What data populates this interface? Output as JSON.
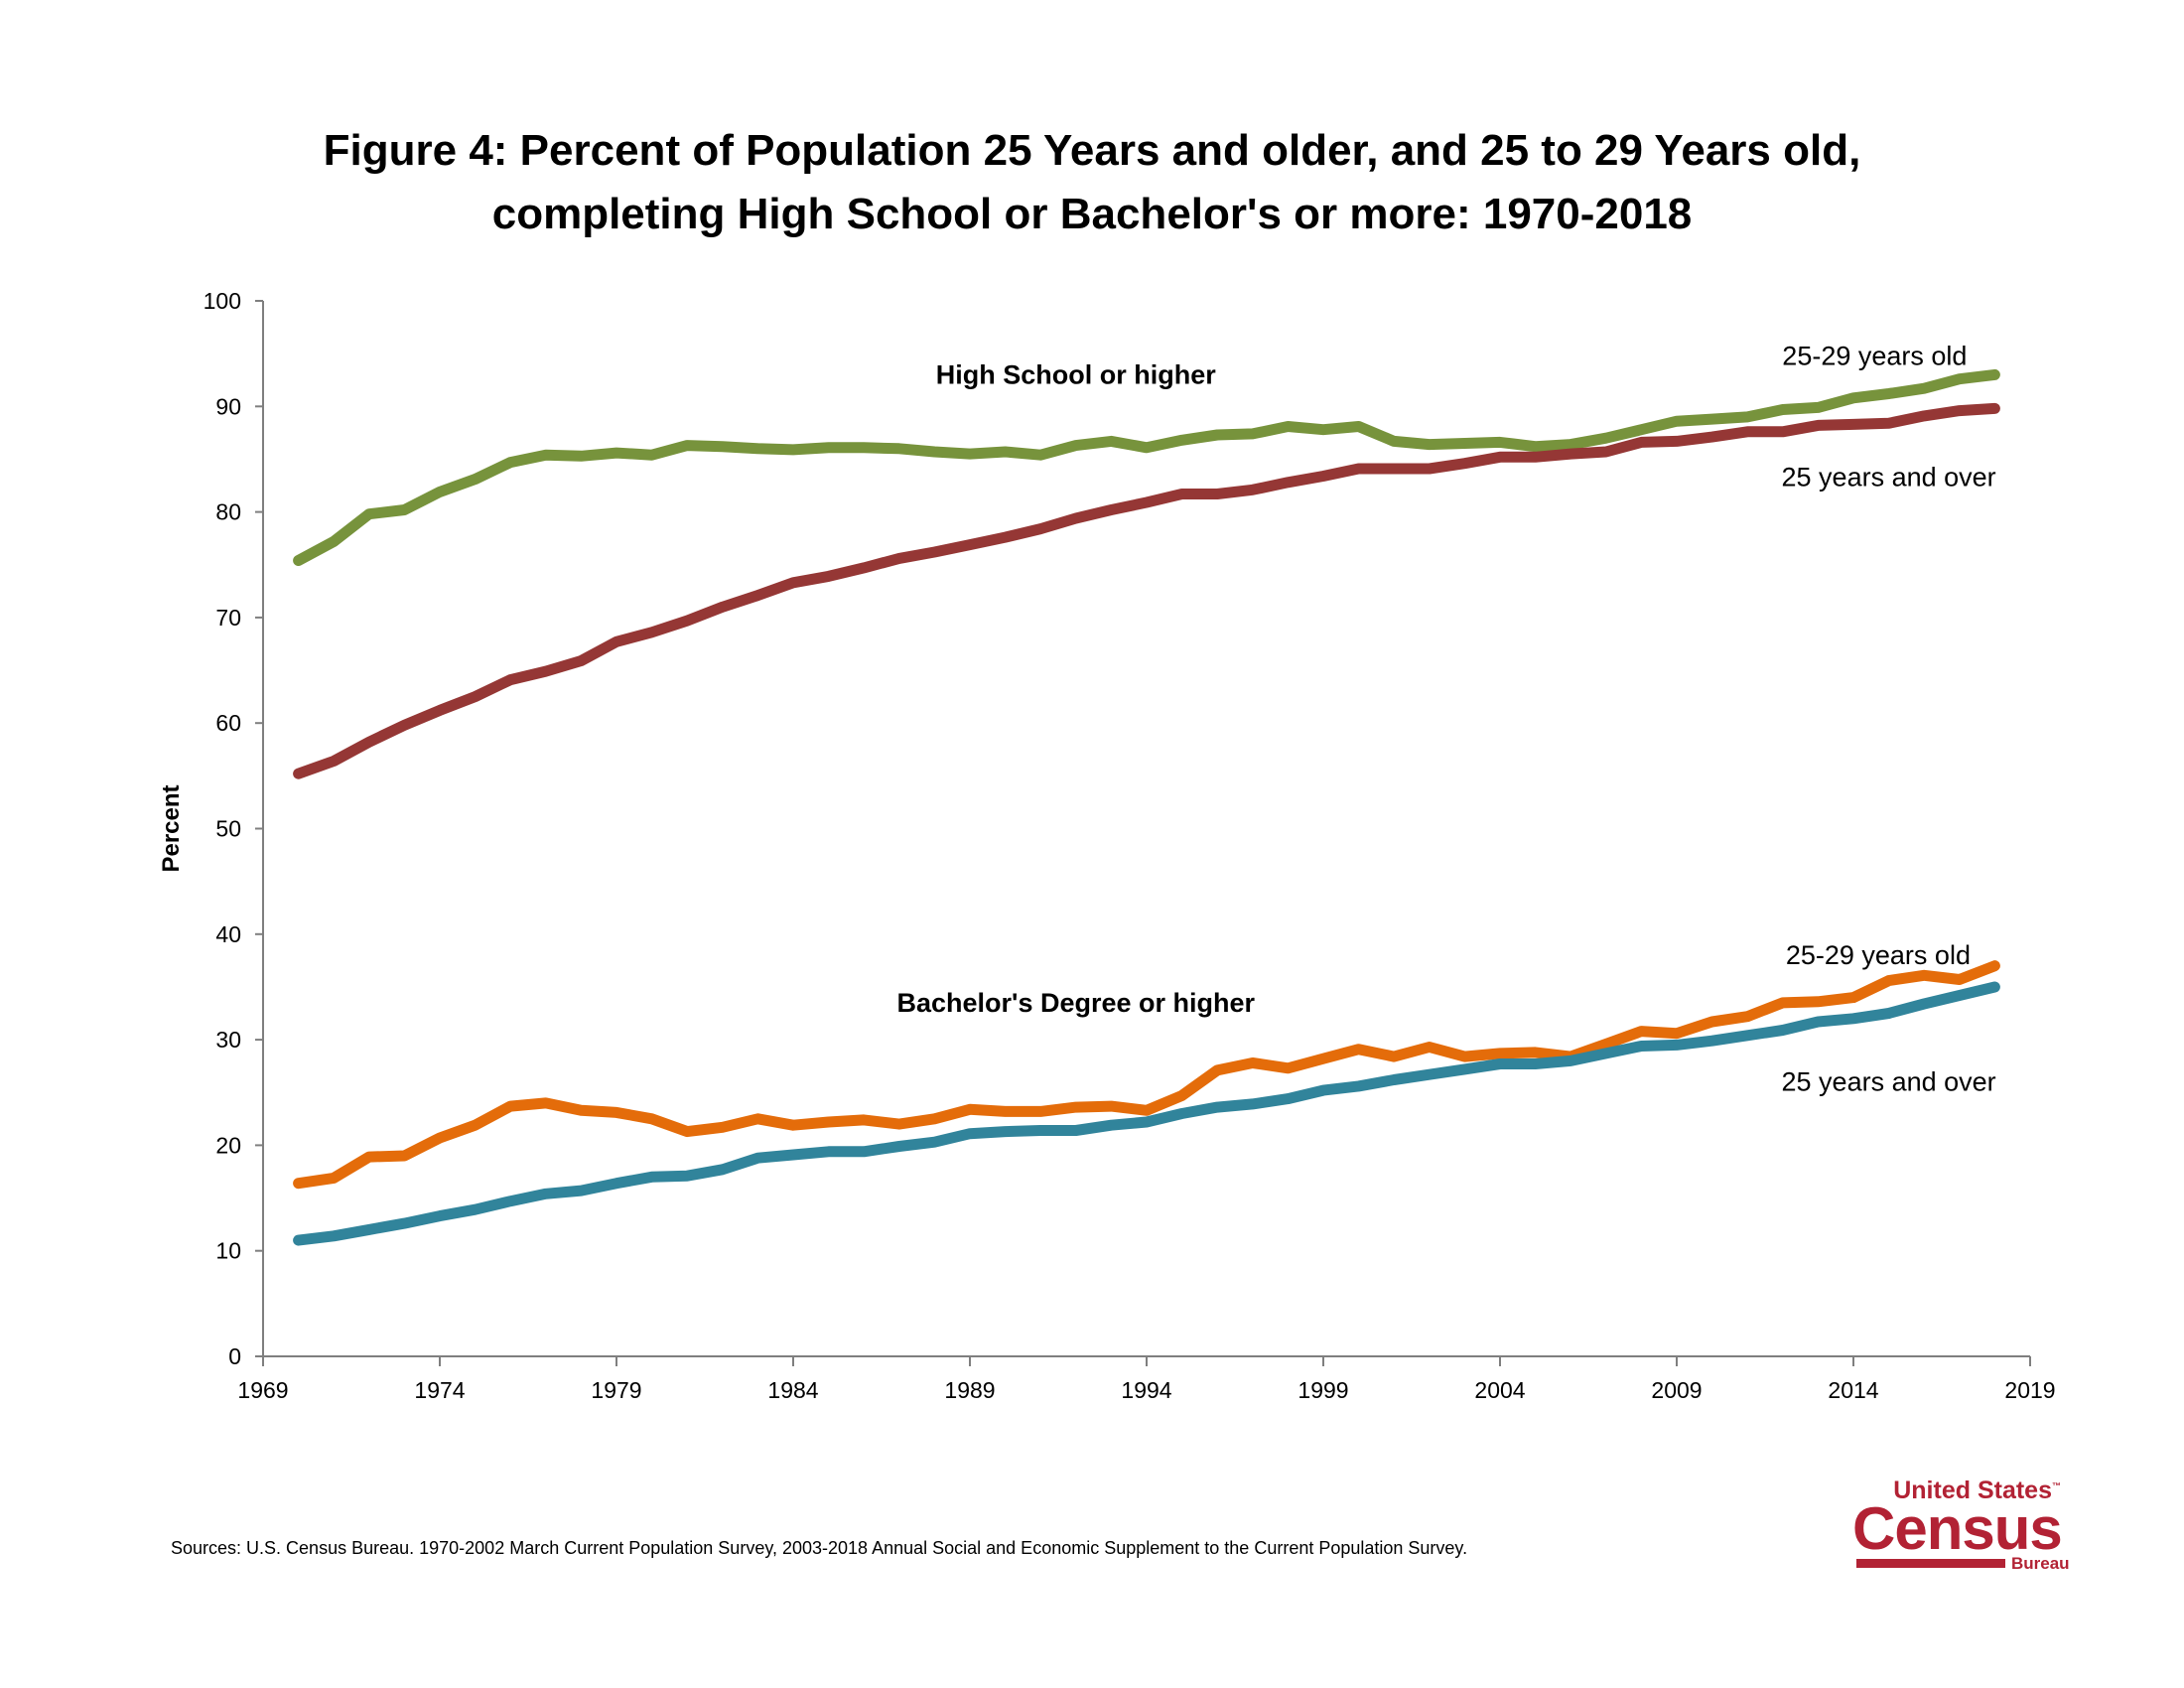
{
  "title": {
    "line1": "Figure 4: Percent of Population 25 Years and older, and 25 to 29 Years old,",
    "line2": "completing High School or Bachelor's or more: 1970-2018"
  },
  "sources": "Sources:  U.S. Census Bureau. 1970-2002 March Current Population Survey, 2003-2018 Annual Social and Economic Supplement to the Current Population Survey.",
  "logo": {
    "line1": "United States",
    "line2": "Census",
    "line3": "Bureau",
    "color": "#b22234"
  },
  "chart_data": {
    "type": "line",
    "title": "",
    "xlabel": "",
    "ylabel": "Percent",
    "xlim": [
      1969,
      2019
    ],
    "ylim": [
      0,
      100
    ],
    "xticks": [
      1969,
      1974,
      1979,
      1984,
      1989,
      1994,
      1999,
      2004,
      2009,
      2014,
      2019
    ],
    "yticks": [
      0,
      10,
      20,
      30,
      40,
      50,
      60,
      70,
      80,
      90,
      100
    ],
    "grid": false,
    "x": [
      1970,
      1971,
      1972,
      1973,
      1974,
      1975,
      1976,
      1977,
      1978,
      1979,
      1980,
      1981,
      1982,
      1983,
      1984,
      1985,
      1986,
      1987,
      1988,
      1989,
      1990,
      1991,
      1992,
      1993,
      1994,
      1995,
      1996,
      1997,
      1998,
      1999,
      2000,
      2001,
      2002,
      2003,
      2004,
      2005,
      2006,
      2007,
      2008,
      2009,
      2010,
      2011,
      2012,
      2013,
      2014,
      2015,
      2016,
      2017,
      2018
    ],
    "series": [
      {
        "name": "25-29 years old",
        "group": "High School or higher",
        "color": "#77933c",
        "values": [
          75.4,
          77.2,
          79.8,
          80.2,
          81.9,
          83.1,
          84.7,
          85.4,
          85.3,
          85.6,
          85.4,
          86.3,
          86.2,
          86.0,
          85.9,
          86.1,
          86.1,
          86.0,
          85.7,
          85.5,
          85.7,
          85.4,
          86.3,
          86.7,
          86.1,
          86.8,
          87.3,
          87.4,
          88.1,
          87.8,
          88.1,
          86.7,
          86.4,
          86.5,
          86.6,
          86.2,
          86.4,
          87.0,
          87.8,
          88.6,
          88.8,
          89.0,
          89.7,
          89.9,
          90.8,
          91.2,
          91.7,
          92.6,
          93.0
        ]
      },
      {
        "name": "25 years and over",
        "group": "High School or higher",
        "color": "#953735",
        "values": [
          55.2,
          56.4,
          58.2,
          59.8,
          61.2,
          62.5,
          64.1,
          64.9,
          65.9,
          67.7,
          68.6,
          69.7,
          71.0,
          72.1,
          73.3,
          73.9,
          74.7,
          75.6,
          76.2,
          76.9,
          77.6,
          78.4,
          79.4,
          80.2,
          80.9,
          81.7,
          81.7,
          82.1,
          82.8,
          83.4,
          84.1,
          84.1,
          84.1,
          84.6,
          85.2,
          85.2,
          85.5,
          85.7,
          86.6,
          86.7,
          87.1,
          87.6,
          87.6,
          88.2,
          88.3,
          88.4,
          89.1,
          89.6,
          89.8
        ]
      },
      {
        "name": "25-29 years old",
        "group": "Bachelor's Degree or higher",
        "color": "#e46c0a",
        "values": [
          16.4,
          16.9,
          18.9,
          19.0,
          20.7,
          21.9,
          23.7,
          24.0,
          23.3,
          23.1,
          22.5,
          21.3,
          21.7,
          22.5,
          21.9,
          22.2,
          22.4,
          22.0,
          22.5,
          23.4,
          23.2,
          23.2,
          23.6,
          23.7,
          23.3,
          24.7,
          27.1,
          27.8,
          27.3,
          28.2,
          29.1,
          28.4,
          29.3,
          28.4,
          28.7,
          28.8,
          28.4,
          29.6,
          30.8,
          30.6,
          31.7,
          32.2,
          33.5,
          33.6,
          34.0,
          35.6,
          36.1,
          35.7,
          37.0
        ]
      },
      {
        "name": "25 years and over",
        "group": "Bachelor's Degree or higher",
        "color": "#31849b",
        "values": [
          11.0,
          11.4,
          12.0,
          12.6,
          13.3,
          13.9,
          14.7,
          15.4,
          15.7,
          16.4,
          17.0,
          17.1,
          17.7,
          18.8,
          19.1,
          19.4,
          19.4,
          19.9,
          20.3,
          21.1,
          21.3,
          21.4,
          21.4,
          21.9,
          22.2,
          23.0,
          23.6,
          23.9,
          24.4,
          25.2,
          25.6,
          26.2,
          26.7,
          27.2,
          27.7,
          27.7,
          28.0,
          28.7,
          29.4,
          29.5,
          29.9,
          30.4,
          30.9,
          31.7,
          32.0,
          32.5,
          33.4,
          34.2,
          35.0
        ]
      }
    ],
    "annotations": [
      {
        "text": "High School or higher",
        "x": 1992,
        "y": 93,
        "bold": true
      },
      {
        "text": "25-29 years old",
        "x": 2014.6,
        "y": 94.8,
        "bold": false
      },
      {
        "text": "25 years and over",
        "x": 2015.0,
        "y": 83.3,
        "bold": false
      },
      {
        "text": "Bachelor's Degree or higher",
        "x": 1992,
        "y": 33.5,
        "bold": true
      },
      {
        "text": "25-29 years old",
        "x": 2014.7,
        "y": 38.0,
        "bold": false
      },
      {
        "text": "25 years and over",
        "x": 2015.0,
        "y": 26.0,
        "bold": false
      }
    ]
  }
}
